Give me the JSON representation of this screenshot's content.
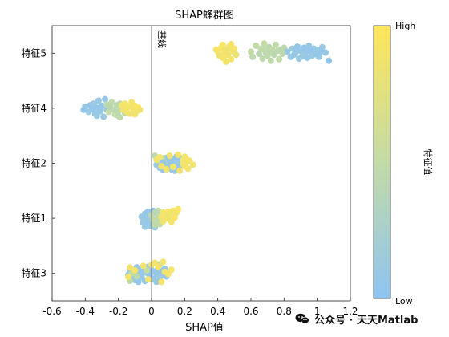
{
  "chart_data": {
    "type": "scatter",
    "title": "SHAP蜂群图",
    "xlabel": "SHAP值",
    "ylabel": "",
    "xlim": [
      -0.6,
      1.2
    ],
    "xticks": [
      -0.6,
      -0.4,
      -0.2,
      0,
      0.2,
      0.4,
      0.6,
      0.8,
      1,
      1.2
    ],
    "xtick_labels": [
      "-0.6",
      "-0.4",
      "-0.2",
      "0",
      "0.2",
      "0.4",
      "0.6",
      "0.8",
      "1",
      "1.2"
    ],
    "categories": [
      "特征5",
      "特征4",
      "特征2",
      "特征1",
      "特征3"
    ],
    "baseline": {
      "x": 0,
      "label": "基线"
    },
    "colorbar": {
      "label": "特征值",
      "high": "High",
      "low": "Low",
      "high_color": "#ffe65c",
      "mid_color": "#c3dba6",
      "low_color": "#8ec4f2"
    },
    "series": [
      {
        "feature": "特征5",
        "points": [
          [
            0.39,
            0.12,
            0.9
          ],
          [
            0.4,
            0.05,
            0.95
          ],
          [
            0.41,
            -0.08,
            0.85
          ],
          [
            0.42,
            0.18,
            0.92
          ],
          [
            0.43,
            -0.15,
            0.9
          ],
          [
            0.44,
            0.02,
            0.88
          ],
          [
            0.45,
            0.1,
            0.93
          ],
          [
            0.46,
            -0.05,
            0.86
          ],
          [
            0.47,
            0.22,
            0.95
          ],
          [
            0.48,
            -0.2,
            0.9
          ],
          [
            0.49,
            0.06,
            0.88
          ],
          [
            0.43,
            0.28,
            0.94
          ],
          [
            0.45,
            -0.28,
            0.9
          ],
          [
            0.46,
            0.15,
            0.87
          ],
          [
            0.44,
            -0.1,
            0.91
          ],
          [
            0.48,
            0.3,
            0.92
          ],
          [
            0.5,
            0.15,
            0.9
          ],
          [
            0.51,
            -0.05,
            0.85
          ],
          [
            0.6,
            0.05,
            0.5
          ],
          [
            0.61,
            -0.12,
            0.45
          ],
          [
            0.63,
            0.25,
            0.5
          ],
          [
            0.65,
            -0.02,
            0.42
          ],
          [
            0.66,
            0.15,
            0.48
          ],
          [
            0.67,
            -0.18,
            0.45
          ],
          [
            0.68,
            0.32,
            0.5
          ],
          [
            0.69,
            0.02,
            0.44
          ],
          [
            0.7,
            -0.08,
            0.46
          ],
          [
            0.71,
            0.2,
            0.42
          ],
          [
            0.72,
            -0.25,
            0.45
          ],
          [
            0.73,
            0.1,
            0.5
          ],
          [
            0.74,
            -0.05,
            0.43
          ],
          [
            0.75,
            0.28,
            0.47
          ],
          [
            0.76,
            0.08,
            0.45
          ],
          [
            0.77,
            -0.2,
            0.5
          ],
          [
            0.78,
            0.12,
            0.42
          ],
          [
            0.79,
            -0.02,
            0.46
          ],
          [
            0.8,
            0.18,
            0.44
          ],
          [
            0.68,
            0.12,
            0.48
          ],
          [
            0.72,
            0.05,
            0.45
          ],
          [
            0.82,
            0.05,
            0.1
          ],
          [
            0.84,
            -0.12,
            0.08
          ],
          [
            0.85,
            0.15,
            0.12
          ],
          [
            0.86,
            -0.05,
            0.1
          ],
          [
            0.88,
            0.22,
            0.05
          ],
          [
            0.89,
            -0.18,
            0.1
          ],
          [
            0.9,
            0.08,
            0.07
          ],
          [
            0.91,
            -0.1,
            0.12
          ],
          [
            0.92,
            0.18,
            0.05
          ],
          [
            0.93,
            0.02,
            0.1
          ],
          [
            0.94,
            -0.15,
            0.08
          ],
          [
            0.95,
            0.25,
            0.1
          ],
          [
            0.96,
            0.05,
            0.06
          ],
          [
            0.97,
            -0.08,
            0.1
          ],
          [
            0.98,
            0.15,
            0.05
          ],
          [
            0.99,
            -0.02,
            0.08
          ],
          [
            1.0,
            0.1,
            0.1
          ],
          [
            1.01,
            -0.12,
            0.07
          ],
          [
            1.02,
            0.05,
            0.05
          ],
          [
            1.03,
            0.2,
            0.1
          ],
          [
            1.05,
            0.02,
            0.08
          ],
          [
            1.07,
            -0.25,
            0.05
          ],
          [
            0.87,
            0.02,
            0.09
          ],
          [
            0.94,
            0.1,
            0.06
          ]
        ]
      },
      {
        "feature": "特征4",
        "points": [
          [
            -0.41,
            -0.05,
            0.05
          ],
          [
            -0.4,
            0.05,
            0.08
          ],
          [
            -0.38,
            -0.12,
            0.1
          ],
          [
            -0.37,
            0.1,
            0.06
          ],
          [
            -0.36,
            -0.02,
            0.05
          ],
          [
            -0.35,
            0.15,
            0.1
          ],
          [
            -0.34,
            -0.18,
            0.07
          ],
          [
            -0.33,
            0.02,
            0.05
          ],
          [
            -0.32,
            0.25,
            0.1
          ],
          [
            -0.31,
            -0.1,
            0.08
          ],
          [
            -0.3,
            0.08,
            0.05
          ],
          [
            -0.29,
            -0.28,
            0.1
          ],
          [
            -0.28,
            0.3,
            0.06
          ],
          [
            -0.27,
            -0.05,
            0.08
          ],
          [
            -0.33,
            -0.25,
            0.1
          ],
          [
            -0.27,
            0.12,
            0.45
          ],
          [
            -0.26,
            -0.12,
            0.5
          ],
          [
            -0.25,
            0.05,
            0.42
          ],
          [
            -0.24,
            0.2,
            0.48
          ],
          [
            -0.23,
            -0.05,
            0.45
          ],
          [
            -0.22,
            -0.2,
            0.5
          ],
          [
            -0.21,
            0.1,
            0.44
          ],
          [
            -0.2,
            -0.1,
            0.46
          ],
          [
            -0.19,
            0.15,
            0.42
          ],
          [
            -0.18,
            -0.02,
            0.48
          ],
          [
            -0.2,
            -0.25,
            0.45
          ],
          [
            -0.17,
            0.08,
            0.5
          ],
          [
            -0.16,
            -0.15,
            0.44
          ],
          [
            -0.15,
            0.02,
            0.45
          ],
          [
            -0.19,
            -0.3,
            0.47
          ],
          [
            -0.18,
            0.1,
            0.9
          ],
          [
            -0.17,
            -0.05,
            0.88
          ],
          [
            -0.16,
            0.15,
            0.92
          ],
          [
            -0.15,
            -0.12,
            0.9
          ],
          [
            -0.14,
            0.05,
            0.95
          ],
          [
            -0.13,
            -0.18,
            0.86
          ],
          [
            -0.12,
            0.2,
            0.9
          ],
          [
            -0.11,
            -0.02,
            0.88
          ],
          [
            -0.1,
            0.08,
            0.93
          ],
          [
            -0.09,
            -0.1,
            0.9
          ],
          [
            -0.08,
            0.02,
            0.95
          ],
          [
            -0.1,
            -0.2,
            0.87
          ],
          [
            -0.13,
            0.05,
            0.9
          ],
          [
            -0.07,
            -0.05,
            0.88
          ]
        ]
      },
      {
        "feature": "特征2",
        "points": [
          [
            0.02,
            0.25,
            0.45
          ],
          [
            0.03,
            -0.05,
            0.1
          ],
          [
            0.04,
            0.1,
            0.45
          ],
          [
            0.05,
            -0.15,
            0.1
          ],
          [
            0.06,
            0.05,
            0.5
          ],
          [
            0.07,
            -0.22,
            0.08
          ],
          [
            0.08,
            0.18,
            0.45
          ],
          [
            0.08,
            -0.08,
            0.1
          ],
          [
            0.09,
            0.02,
            0.42
          ],
          [
            0.1,
            0.2,
            0.05
          ],
          [
            0.1,
            -0.12,
            0.1
          ],
          [
            0.11,
            0.08,
            0.06
          ],
          [
            0.12,
            -0.2,
            0.1
          ],
          [
            0.12,
            0.15,
            0.08
          ],
          [
            0.13,
            0.0,
            0.05
          ],
          [
            0.14,
            -0.25,
            0.1
          ],
          [
            0.14,
            0.1,
            0.07
          ],
          [
            0.15,
            -0.05,
            0.1
          ],
          [
            0.15,
            0.22,
            0.05
          ],
          [
            0.16,
            -0.15,
            0.08
          ],
          [
            0.16,
            0.05,
            0.1
          ],
          [
            0.17,
            0.18,
            0.06
          ],
          [
            0.18,
            -0.08,
            0.1
          ],
          [
            0.18,
            0.0,
            0.05
          ],
          [
            0.07,
            0.02,
            0.1
          ],
          [
            0.12,
            0.05,
            0.08
          ],
          [
            0.03,
            0.12,
            0.88
          ],
          [
            0.05,
            0.2,
            0.9
          ],
          [
            0.06,
            -0.1,
            0.92
          ],
          [
            0.09,
            -0.2,
            0.9
          ],
          [
            0.11,
            0.25,
            0.88
          ],
          [
            0.13,
            -0.12,
            0.9
          ],
          [
            0.16,
            0.28,
            0.92
          ],
          [
            0.17,
            -0.25,
            0.88
          ],
          [
            0.19,
            0.1,
            0.9
          ],
          [
            0.2,
            0.22,
            0.9
          ],
          [
            0.2,
            -0.1,
            0.92
          ],
          [
            0.21,
            0.02,
            0.88
          ],
          [
            0.22,
            -0.18,
            0.9
          ],
          [
            0.21,
            0.15,
            0.9
          ],
          [
            0.25,
            -0.05,
            0.9
          ],
          [
            0.23,
            0.08,
            0.92
          ],
          [
            0.19,
            -0.02,
            0.9
          ]
        ]
      },
      {
        "feature": "特征1",
        "points": [
          [
            -0.06,
            0.05,
            0.1
          ],
          [
            -0.05,
            -0.15,
            0.05
          ],
          [
            -0.04,
            0.15,
            0.1
          ],
          [
            -0.03,
            -0.05,
            0.08
          ],
          [
            -0.02,
            0.22,
            0.05
          ],
          [
            -0.01,
            -0.25,
            0.1
          ],
          [
            0.0,
            0.05,
            0.06
          ],
          [
            -0.05,
            -0.1,
            0.1
          ],
          [
            -0.03,
            0.1,
            0.08
          ],
          [
            -0.02,
            -0.18,
            0.05
          ],
          [
            -0.01,
            0.0,
            0.1
          ],
          [
            0.02,
            -0.3,
            0.08
          ],
          [
            -0.04,
            -0.28,
            0.1
          ],
          [
            0.01,
            0.25,
            0.05
          ],
          [
            0.0,
            -0.22,
            0.08
          ],
          [
            0.0,
            0.1,
            0.45
          ],
          [
            0.01,
            -0.05,
            0.5
          ],
          [
            0.02,
            0.18,
            0.42
          ],
          [
            0.03,
            -0.12,
            0.48
          ],
          [
            0.04,
            0.02,
            0.45
          ],
          [
            0.05,
            -0.2,
            0.5
          ],
          [
            0.06,
            0.12,
            0.44
          ],
          [
            0.02,
            -0.22,
            0.46
          ],
          [
            0.04,
            0.25,
            0.42
          ],
          [
            0.05,
            -0.02,
            0.48
          ],
          [
            0.06,
            0.05,
            0.9
          ],
          [
            0.07,
            -0.1,
            0.88
          ],
          [
            0.08,
            0.15,
            0.92
          ],
          [
            0.09,
            0.0,
            0.9
          ],
          [
            0.1,
            0.22,
            0.95
          ],
          [
            0.11,
            -0.05,
            0.86
          ],
          [
            0.12,
            0.1,
            0.9
          ],
          [
            0.13,
            0.25,
            0.88
          ],
          [
            0.14,
            0.02,
            0.93
          ],
          [
            0.15,
            0.18,
            0.9
          ],
          [
            0.16,
            0.3,
            0.95
          ],
          [
            0.1,
            0.08,
            0.87
          ],
          [
            0.07,
            0.2,
            0.9
          ],
          [
            0.12,
            -0.12,
            0.91
          ]
        ]
      },
      {
        "feature": "特征3",
        "points": [
          [
            -0.14,
            -0.05,
            0.08
          ],
          [
            -0.13,
            0.12,
            0.1
          ],
          [
            -0.12,
            -0.15,
            0.05
          ],
          [
            -0.11,
            0.05,
            0.1
          ],
          [
            -0.1,
            -0.22,
            0.08
          ],
          [
            -0.09,
            0.2,
            0.05
          ],
          [
            -0.08,
            -0.02,
            0.1
          ],
          [
            -0.07,
            0.15,
            0.06
          ],
          [
            -0.06,
            -0.12,
            0.1
          ],
          [
            -0.05,
            0.08,
            0.08
          ],
          [
            -0.04,
            -0.25,
            0.05
          ],
          [
            -0.03,
            0.02,
            0.1
          ],
          [
            -0.02,
            0.22,
            0.08
          ],
          [
            -0.01,
            -0.08,
            0.05
          ],
          [
            0.0,
            0.12,
            0.1
          ],
          [
            0.01,
            -0.18,
            0.06
          ],
          [
            0.02,
            0.05,
            0.1
          ],
          [
            0.03,
            -0.02,
            0.08
          ],
          [
            0.04,
            0.18,
            0.05
          ],
          [
            0.05,
            -0.15,
            0.1
          ],
          [
            0.06,
            0.08,
            0.06
          ],
          [
            0.07,
            -0.05,
            0.1
          ],
          [
            0.08,
            0.15,
            0.08
          ],
          [
            0.09,
            -0.1,
            0.05
          ],
          [
            -0.06,
            0.0,
            0.1
          ],
          [
            0.0,
            -0.2,
            0.08
          ],
          [
            0.03,
            -0.28,
            0.1
          ],
          [
            -0.08,
            -0.28,
            0.06
          ],
          [
            -0.13,
            -0.25,
            0.45
          ],
          [
            -0.12,
            0.0,
            0.5
          ],
          [
            -0.09,
            -0.1,
            0.45
          ],
          [
            0.05,
            0.3,
            0.45
          ],
          [
            -0.03,
            0.1,
            0.5
          ],
          [
            -0.14,
            -0.12,
            0.9
          ],
          [
            -0.13,
            0.2,
            0.88
          ],
          [
            -0.1,
            0.1,
            0.92
          ],
          [
            -0.05,
            0.25,
            0.9
          ],
          [
            -0.02,
            -0.2,
            0.9
          ],
          [
            0.0,
            0.28,
            0.88
          ],
          [
            0.02,
            0.35,
            0.9
          ],
          [
            0.04,
            0.22,
            0.92
          ],
          [
            0.06,
            -0.28,
            0.9
          ],
          [
            0.08,
            0.05,
            0.88
          ],
          [
            0.1,
            -0.02,
            0.9
          ],
          [
            0.12,
            0.12,
            0.9
          ],
          [
            0.07,
            0.38,
            0.9
          ]
        ]
      }
    ]
  },
  "watermark": {
    "text": "公众号 · 天天Matlab"
  }
}
